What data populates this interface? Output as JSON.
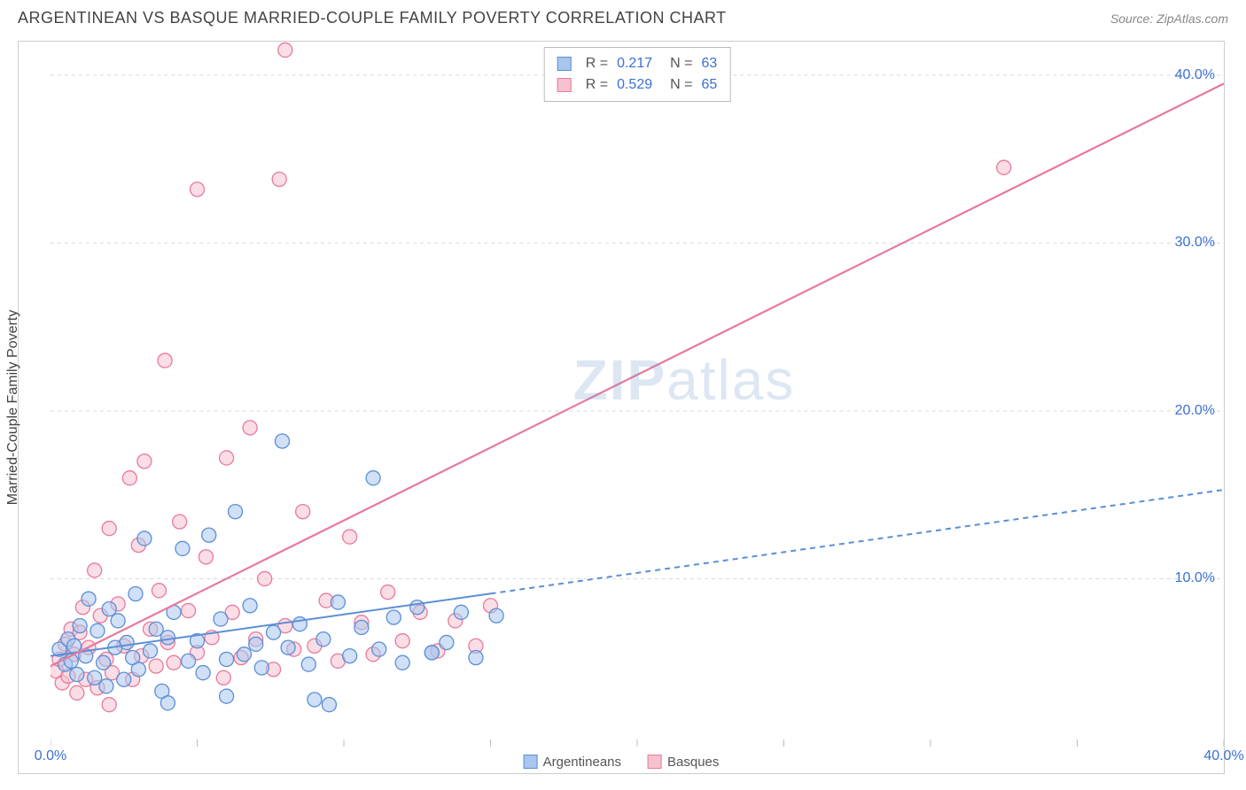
{
  "header": {
    "title": "ARGENTINEAN VS BASQUE MARRIED-COUPLE FAMILY POVERTY CORRELATION CHART",
    "source_prefix": "Source: ",
    "source_name": "ZipAtlas.com"
  },
  "ylabel": "Married-Couple Family Poverty",
  "watermark": {
    "bold": "ZIP",
    "rest": "atlas"
  },
  "legend_bottom": {
    "series1": {
      "label": "Argentineans",
      "fill": "#a9c6ef",
      "stroke": "#5b8fd6"
    },
    "series2": {
      "label": "Basques",
      "fill": "#f6c1cf",
      "stroke": "#e87a9a"
    }
  },
  "stats": {
    "rows": [
      {
        "fill": "#a9c6ef",
        "stroke": "#5b8fd6",
        "r_label": "R =",
        "r_val": "0.217",
        "n_label": "N =",
        "n_val": "63"
      },
      {
        "fill": "#f6c1cf",
        "stroke": "#e87a9a",
        "r_label": "R =",
        "r_val": "0.529",
        "n_label": "N =",
        "n_val": "65"
      }
    ]
  },
  "chart": {
    "type": "scatter",
    "xlim": [
      0,
      40
    ],
    "ylim": [
      0,
      42
    ],
    "x_ticks": [
      0,
      5,
      10,
      15,
      20,
      25,
      30,
      35,
      40
    ],
    "x_tick_labels": {
      "0": "0.0%",
      "40": "40.0%"
    },
    "y_ticks_right": [
      10,
      20,
      30,
      40
    ],
    "y_tick_labels": {
      "10": "10.0%",
      "20": "20.0%",
      "30": "30.0%",
      "40": "40.0%"
    },
    "grid_color": "#d9d9d9",
    "background": "#ffffff",
    "marker_radius": 8,
    "marker_opacity": 0.55,
    "series": {
      "argentineans": {
        "fill": "#a9c6ef",
        "stroke": "#5b8fd6",
        "trend": {
          "solid_to_x": 15,
          "y0": 5.4,
          "y_at_40": 15.3,
          "dash": "6,5",
          "width": 2
        },
        "points": [
          [
            0.3,
            5.8
          ],
          [
            0.5,
            4.9
          ],
          [
            0.6,
            6.4
          ],
          [
            0.7,
            5.1
          ],
          [
            0.8,
            6.0
          ],
          [
            0.9,
            4.3
          ],
          [
            1.0,
            7.2
          ],
          [
            1.2,
            5.4
          ],
          [
            1.3,
            8.8
          ],
          [
            1.5,
            4.1
          ],
          [
            1.6,
            6.9
          ],
          [
            1.8,
            5.0
          ],
          [
            1.9,
            3.6
          ],
          [
            2.0,
            8.2
          ],
          [
            2.2,
            5.9
          ],
          [
            2.3,
            7.5
          ],
          [
            2.5,
            4.0
          ],
          [
            2.6,
            6.2
          ],
          [
            2.8,
            5.3
          ],
          [
            2.9,
            9.1
          ],
          [
            3.0,
            4.6
          ],
          [
            3.2,
            12.4
          ],
          [
            3.4,
            5.7
          ],
          [
            3.6,
            7.0
          ],
          [
            3.8,
            3.3
          ],
          [
            4.0,
            6.5
          ],
          [
            4.2,
            8.0
          ],
          [
            4.5,
            11.8
          ],
          [
            4.7,
            5.1
          ],
          [
            5.0,
            6.3
          ],
          [
            5.2,
            4.4
          ],
          [
            5.4,
            12.6
          ],
          [
            5.8,
            7.6
          ],
          [
            6.0,
            5.2
          ],
          [
            6.0,
            3.0
          ],
          [
            6.3,
            14.0
          ],
          [
            6.6,
            5.5
          ],
          [
            6.8,
            8.4
          ],
          [
            7.0,
            6.1
          ],
          [
            7.2,
            4.7
          ],
          [
            7.6,
            6.8
          ],
          [
            7.9,
            18.2
          ],
          [
            8.1,
            5.9
          ],
          [
            8.5,
            7.3
          ],
          [
            8.8,
            4.9
          ],
          [
            9.0,
            2.8
          ],
          [
            9.3,
            6.4
          ],
          [
            9.8,
            8.6
          ],
          [
            10.2,
            5.4
          ],
          [
            10.6,
            7.1
          ],
          [
            11.0,
            16.0
          ],
          [
            11.2,
            5.8
          ],
          [
            11.7,
            7.7
          ],
          [
            12.0,
            5.0
          ],
          [
            12.5,
            8.3
          ],
          [
            13.0,
            5.6
          ],
          [
            13.0,
            5.6
          ],
          [
            13.5,
            6.2
          ],
          [
            14.0,
            8.0
          ],
          [
            14.5,
            5.3
          ],
          [
            15.2,
            7.8
          ],
          [
            9.5,
            2.5
          ],
          [
            4.0,
            2.6
          ]
        ]
      },
      "basques": {
        "fill": "#f6c1cf",
        "stroke": "#e87a9a",
        "trend": {
          "solid_to_x": 40,
          "y0": 4.8,
          "y_at_40": 39.5,
          "dash": "none",
          "width": 2.2
        },
        "points": [
          [
            0.2,
            4.5
          ],
          [
            0.3,
            5.2
          ],
          [
            0.4,
            3.8
          ],
          [
            0.5,
            6.1
          ],
          [
            0.6,
            4.2
          ],
          [
            0.7,
            7.0
          ],
          [
            0.8,
            5.5
          ],
          [
            0.9,
            3.2
          ],
          [
            1.0,
            6.8
          ],
          [
            1.1,
            8.3
          ],
          [
            1.2,
            4.0
          ],
          [
            1.3,
            5.9
          ],
          [
            1.5,
            10.5
          ],
          [
            1.6,
            3.5
          ],
          [
            1.7,
            7.8
          ],
          [
            1.9,
            5.2
          ],
          [
            2.0,
            13.0
          ],
          [
            2.1,
            4.4
          ],
          [
            2.3,
            8.5
          ],
          [
            2.5,
            6.0
          ],
          [
            2.7,
            16.0
          ],
          [
            2.8,
            4.0
          ],
          [
            3.0,
            12.0
          ],
          [
            3.1,
            5.4
          ],
          [
            3.2,
            17.0
          ],
          [
            3.4,
            7.0
          ],
          [
            3.6,
            4.8
          ],
          [
            3.7,
            9.3
          ],
          [
            3.9,
            23.0
          ],
          [
            4.0,
            6.2
          ],
          [
            4.2,
            5.0
          ],
          [
            4.4,
            13.4
          ],
          [
            4.7,
            8.1
          ],
          [
            5.0,
            33.2
          ],
          [
            5.0,
            5.6
          ],
          [
            5.3,
            11.3
          ],
          [
            5.5,
            6.5
          ],
          [
            5.9,
            4.1
          ],
          [
            6.0,
            17.2
          ],
          [
            6.2,
            8.0
          ],
          [
            6.5,
            5.3
          ],
          [
            6.8,
            19.0
          ],
          [
            7.0,
            6.4
          ],
          [
            7.3,
            10.0
          ],
          [
            7.6,
            4.6
          ],
          [
            7.8,
            33.8
          ],
          [
            8.0,
            41.5
          ],
          [
            8.0,
            7.2
          ],
          [
            8.3,
            5.8
          ],
          [
            8.6,
            14.0
          ],
          [
            9.0,
            6.0
          ],
          [
            9.4,
            8.7
          ],
          [
            9.8,
            5.1
          ],
          [
            10.2,
            12.5
          ],
          [
            10.6,
            7.4
          ],
          [
            11.0,
            5.5
          ],
          [
            11.5,
            9.2
          ],
          [
            12.0,
            6.3
          ],
          [
            12.6,
            8.0
          ],
          [
            13.2,
            5.7
          ],
          [
            13.8,
            7.5
          ],
          [
            14.5,
            6.0
          ],
          [
            15.0,
            8.4
          ],
          [
            32.5,
            34.5
          ],
          [
            2.0,
            2.5
          ]
        ]
      }
    }
  }
}
